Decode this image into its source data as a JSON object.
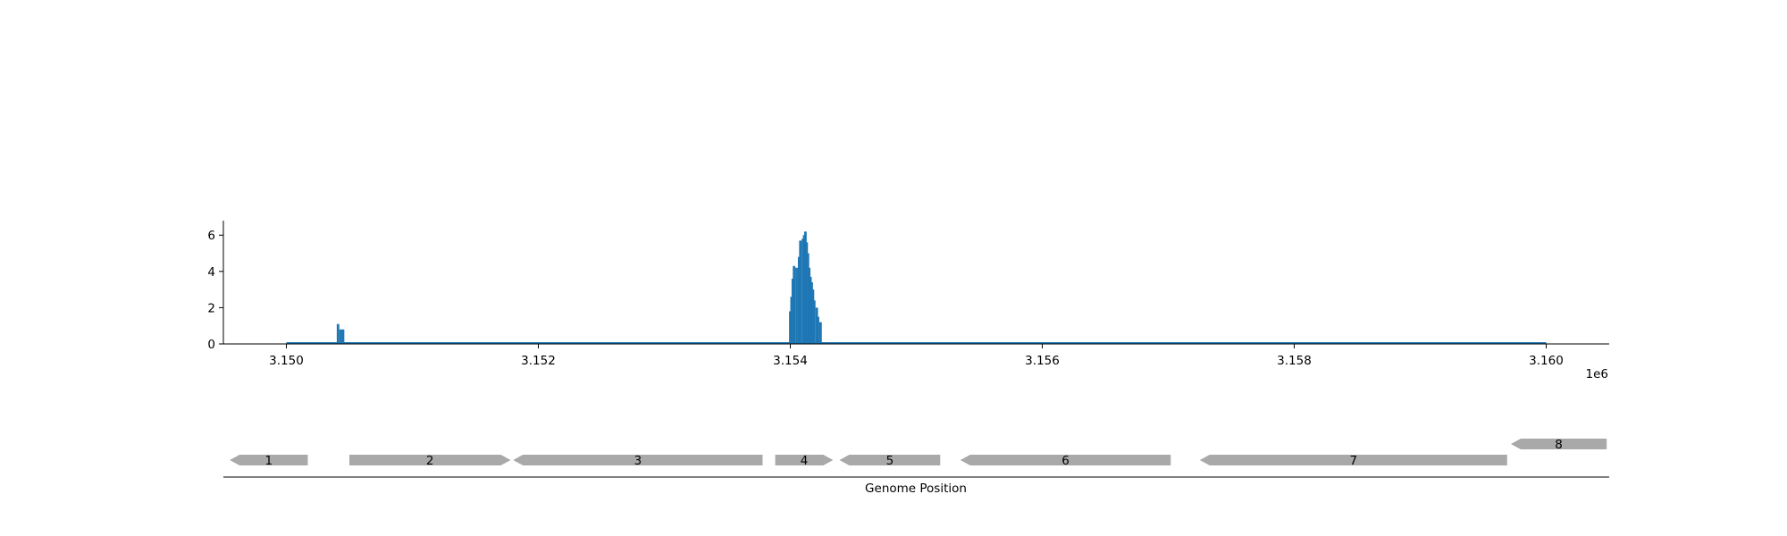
{
  "chart_data": [
    {
      "type": "bar",
      "title": "",
      "xlabel": "",
      "ylabel": "",
      "x_offset_label": "1e6",
      "xlim": [
        3149500,
        3160500
      ],
      "ylim": [
        0,
        6.8
      ],
      "x_ticks": [
        3150000,
        3152000,
        3154000,
        3156000,
        3158000,
        3160000
      ],
      "x_tick_labels": [
        "3.150",
        "3.152",
        "3.154",
        "3.156",
        "3.158",
        "3.160"
      ],
      "y_ticks": [
        0,
        2,
        4,
        6
      ],
      "y_tick_labels": [
        "0",
        "2",
        "4",
        "6"
      ],
      "baseline_range": [
        3150000,
        3160000
      ],
      "bar_width": 20,
      "color": "#1f77b4",
      "grid": false,
      "bars": [
        {
          "x": 3150400,
          "y": 1.1
        },
        {
          "x": 3150420,
          "y": 0.8
        },
        {
          "x": 3150440,
          "y": 0.8
        },
        {
          "x": 3153990,
          "y": 1.8
        },
        {
          "x": 3154000,
          "y": 2.6
        },
        {
          "x": 3154010,
          "y": 3.6
        },
        {
          "x": 3154020,
          "y": 4.3
        },
        {
          "x": 3154040,
          "y": 4.2
        },
        {
          "x": 3154060,
          "y": 4.8
        },
        {
          "x": 3154070,
          "y": 5.7
        },
        {
          "x": 3154090,
          "y": 5.8
        },
        {
          "x": 3154100,
          "y": 6.0
        },
        {
          "x": 3154110,
          "y": 6.2
        },
        {
          "x": 3154120,
          "y": 5.6
        },
        {
          "x": 3154130,
          "y": 5.0
        },
        {
          "x": 3154140,
          "y": 4.2
        },
        {
          "x": 3154150,
          "y": 3.7
        },
        {
          "x": 3154160,
          "y": 3.4
        },
        {
          "x": 3154170,
          "y": 3.0
        },
        {
          "x": 3154180,
          "y": 2.4
        },
        {
          "x": 3154200,
          "y": 2.0
        },
        {
          "x": 3154210,
          "y": 1.5
        },
        {
          "x": 3154230,
          "y": 1.2
        }
      ]
    },
    {
      "type": "gene-map",
      "xlabel": "Genome Position",
      "color": "#a9a9a9",
      "genes": [
        {
          "label": "1",
          "start": 3149550,
          "end": 3150170,
          "strand": "-",
          "row": 0
        },
        {
          "label": "2",
          "start": 3150500,
          "end": 3151780,
          "strand": "+",
          "row": 0
        },
        {
          "label": "3",
          "start": 3151800,
          "end": 3153780,
          "strand": "-",
          "row": 0
        },
        {
          "label": "4",
          "start": 3153880,
          "end": 3154340,
          "strand": "+",
          "row": 0
        },
        {
          "label": "5",
          "start": 3154390,
          "end": 3155190,
          "strand": "-",
          "row": 0
        },
        {
          "label": "6",
          "start": 3155350,
          "end": 3157020,
          "strand": "-",
          "row": 0
        },
        {
          "label": "7",
          "start": 3157250,
          "end": 3159690,
          "strand": "-",
          "row": 0
        },
        {
          "label": "8",
          "start": 3159720,
          "end": 3160480,
          "strand": "-",
          "row": 1
        }
      ]
    }
  ]
}
